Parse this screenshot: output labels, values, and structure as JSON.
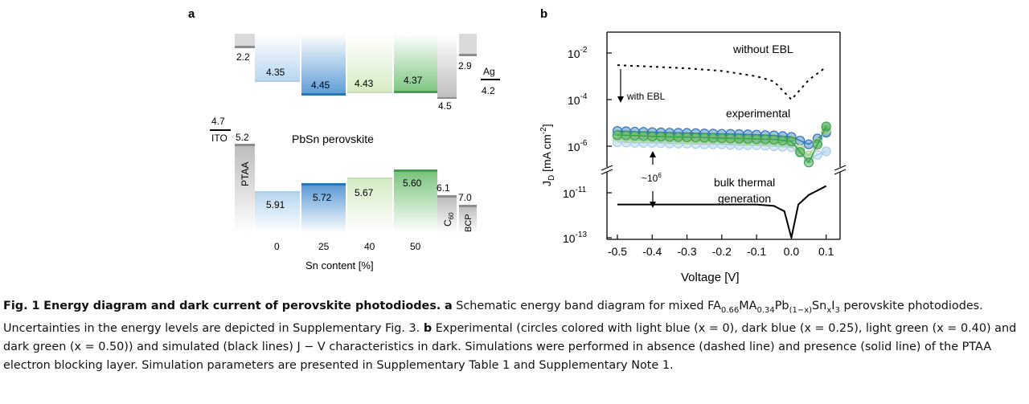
{
  "panel_a": {
    "label": "a",
    "center_title": "PbSn perovskite",
    "x_axis_label": "Sn content [%]",
    "ticks": [
      "0",
      "25",
      "40",
      "50"
    ],
    "ito": {
      "label": "ITO",
      "value": "4.7"
    },
    "ptaa": {
      "label": "PTAA",
      "lumo": "2.2",
      "homo": "5.2"
    },
    "perovskites": [
      {
        "sn": "0",
        "cbm": "4.35",
        "vbm": "5.91",
        "color": "#5b9bd5"
      },
      {
        "sn": "25",
        "cbm": "4.45",
        "vbm": "5.72",
        "color": "#2e75b6"
      },
      {
        "sn": "40",
        "cbm": "4.43",
        "vbm": "5.67",
        "color": "#a9d18e"
      },
      {
        "sn": "50",
        "cbm": "4.37",
        "vbm": "5.60",
        "color": "#4caf50"
      }
    ],
    "c60": {
      "label": "C",
      "sub": "60",
      "lumo": "4.5",
      "homo": "6.1"
    },
    "bcp": {
      "label": "BCP",
      "lumo": "2.9",
      "homo": "7.0"
    },
    "ag": {
      "label": "Ag",
      "value": "4.2"
    }
  },
  "panel_b": {
    "label": "b",
    "chart_data": {
      "type": "line",
      "xlabel": "Voltage [V]",
      "ylabel": "J_D [mA cm^-2]",
      "x_ticks": [
        "-0.5",
        "-0.4",
        "-0.3",
        "-0.2",
        "-0.1",
        "0.0",
        "0.1"
      ],
      "xlim": [
        -0.53,
        0.14
      ],
      "y_scale": "log (broken axis)",
      "y_tick_labels": [
        {
          "base": "10",
          "exp": "-2"
        },
        {
          "base": "10",
          "exp": "-4"
        },
        {
          "base": "10",
          "exp": "-6"
        },
        {
          "base": "10",
          "exp": "-11"
        },
        {
          "base": "10",
          "exp": "-13"
        }
      ],
      "annotations": {
        "without_ebl": "without EBL",
        "with_ebl": "with EBL",
        "experimental": "experimental",
        "factor": "~10",
        "factor_exp": "6",
        "bulk1": "bulk thermal",
        "bulk2": "generation"
      },
      "series": [
        {
          "name": "x = 0",
          "color": "#a9cfe8",
          "x": [
            -0.5,
            -0.45,
            -0.4,
            -0.35,
            -0.3,
            -0.25,
            -0.2,
            -0.15,
            -0.1,
            -0.05,
            0.0,
            0.05,
            0.1
          ],
          "y": [
            1.5e-06,
            1.4e-06,
            1.4e-06,
            1.3e-06,
            1.3e-06,
            1.2e-06,
            1.2e-06,
            1.1e-06,
            1.1e-06,
            1e-06,
            9e-07,
            3e-07,
            6e-07
          ]
        },
        {
          "name": "x = 0.25",
          "color": "#2e75b6",
          "x": [
            -0.5,
            -0.45,
            -0.4,
            -0.35,
            -0.3,
            -0.25,
            -0.2,
            -0.15,
            -0.1,
            -0.05,
            0.0,
            0.05,
            0.1
          ],
          "y": [
            4.5e-06,
            4.2e-06,
            4e-06,
            3.8e-06,
            3.7e-06,
            3.5e-06,
            3.4e-06,
            3.3e-06,
            3.1e-06,
            2.9e-06,
            2.5e-06,
            1.2e-06,
            3.8e-06
          ]
        },
        {
          "name": "x = 0.40",
          "color": "#a9d18e",
          "x": [
            -0.5,
            -0.45,
            -0.4,
            -0.35,
            -0.3,
            -0.25,
            -0.2,
            -0.15,
            -0.1,
            -0.05,
            0.0,
            0.05,
            0.1
          ],
          "y": [
            2.5e-06,
            2.3e-06,
            2.2e-06,
            2.1e-06,
            2e-06,
            1.9e-06,
            1.9e-06,
            1.8e-06,
            1.7e-06,
            1.6e-06,
            1.4e-06,
            4e-07,
            5e-06
          ]
        },
        {
          "name": "x = 0.50",
          "color": "#3aa34a",
          "x": [
            -0.5,
            -0.45,
            -0.4,
            -0.35,
            -0.3,
            -0.25,
            -0.2,
            -0.15,
            -0.1,
            -0.05,
            0.0,
            0.05,
            0.1
          ],
          "y": [
            3e-06,
            2.8e-06,
            2.6e-06,
            2.5e-06,
            2.4e-06,
            2.3e-06,
            2.2e-06,
            2.1e-06,
            2e-06,
            1.9e-06,
            1.6e-06,
            2e-07,
            7e-06
          ]
        },
        {
          "name": "without EBL",
          "style": "dashed",
          "color": "#000000",
          "x": [
            -0.5,
            -0.4,
            -0.3,
            -0.2,
            -0.1,
            -0.05,
            0.0,
            0.05,
            0.1
          ],
          "y": [
            0.003,
            0.0026,
            0.0022,
            0.0017,
            0.001,
            0.0006,
            0.0001,
            0.0007,
            0.0025
          ]
        },
        {
          "name": "with EBL",
          "style": "solid",
          "color": "#000000",
          "x": [
            -0.5,
            -0.4,
            -0.3,
            -0.2,
            -0.1,
            -0.05,
            -0.02,
            0.0,
            0.02,
            0.05,
            0.1
          ],
          "y": [
            3e-12,
            3e-12,
            3e-12,
            3e-12,
            3e-12,
            2.6e-12,
            1.5e-12,
            1e-13,
            3e-12,
            8e-12,
            2e-11
          ]
        }
      ]
    }
  },
  "caption": {
    "fig": "Fig. 1",
    "title": "Energy diagram and dark current of perovskite photodiodes.",
    "a": "a",
    "text_a1": "Schematic energy band diagram for mixed FA",
    "sub1": "0.66",
    "text_a2": "MA",
    "sub2": "0.34",
    "text_a3": "Pb",
    "sub3": "(1−x)",
    "text_a4": "Sn",
    "sub4": "x",
    "text_a5": "I",
    "sub5": "3",
    "text_a6": "perovskite photodiodes. Uncertainties in the energy levels are depicted in Supplementary Fig. 3.",
    "b": "b",
    "text_b": "Experimental (circles colored with light blue (x = 0), dark blue (x = 0.25), light green (x = 0.40) and dark green (x = 0.50)) and simulated (black lines) J − V characteristics in dark. Simulations were performed in absence (dashed line) and presence (solid line) of the PTAA electron blocking layer. Simulation parameters are presented in Supplementary Table 1 and Supplementary Note 1."
  }
}
